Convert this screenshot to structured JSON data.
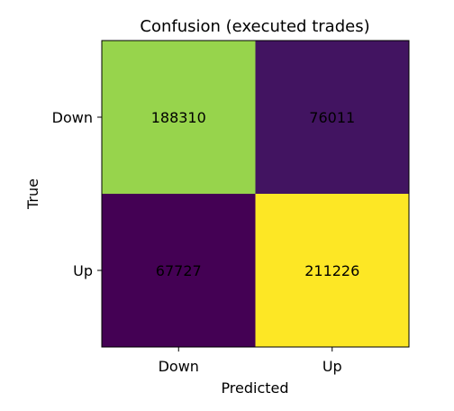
{
  "chart_data": {
    "type": "heatmap",
    "title": "Confusion (executed trades)",
    "xlabel": "Predicted",
    "ylabel": "True",
    "x_categories": [
      "Down",
      "Up"
    ],
    "y_categories": [
      "Down",
      "Up"
    ],
    "values": [
      [
        188310,
        76011
      ],
      [
        67727,
        211226
      ]
    ],
    "colormap": "viridis",
    "grid": false
  }
}
